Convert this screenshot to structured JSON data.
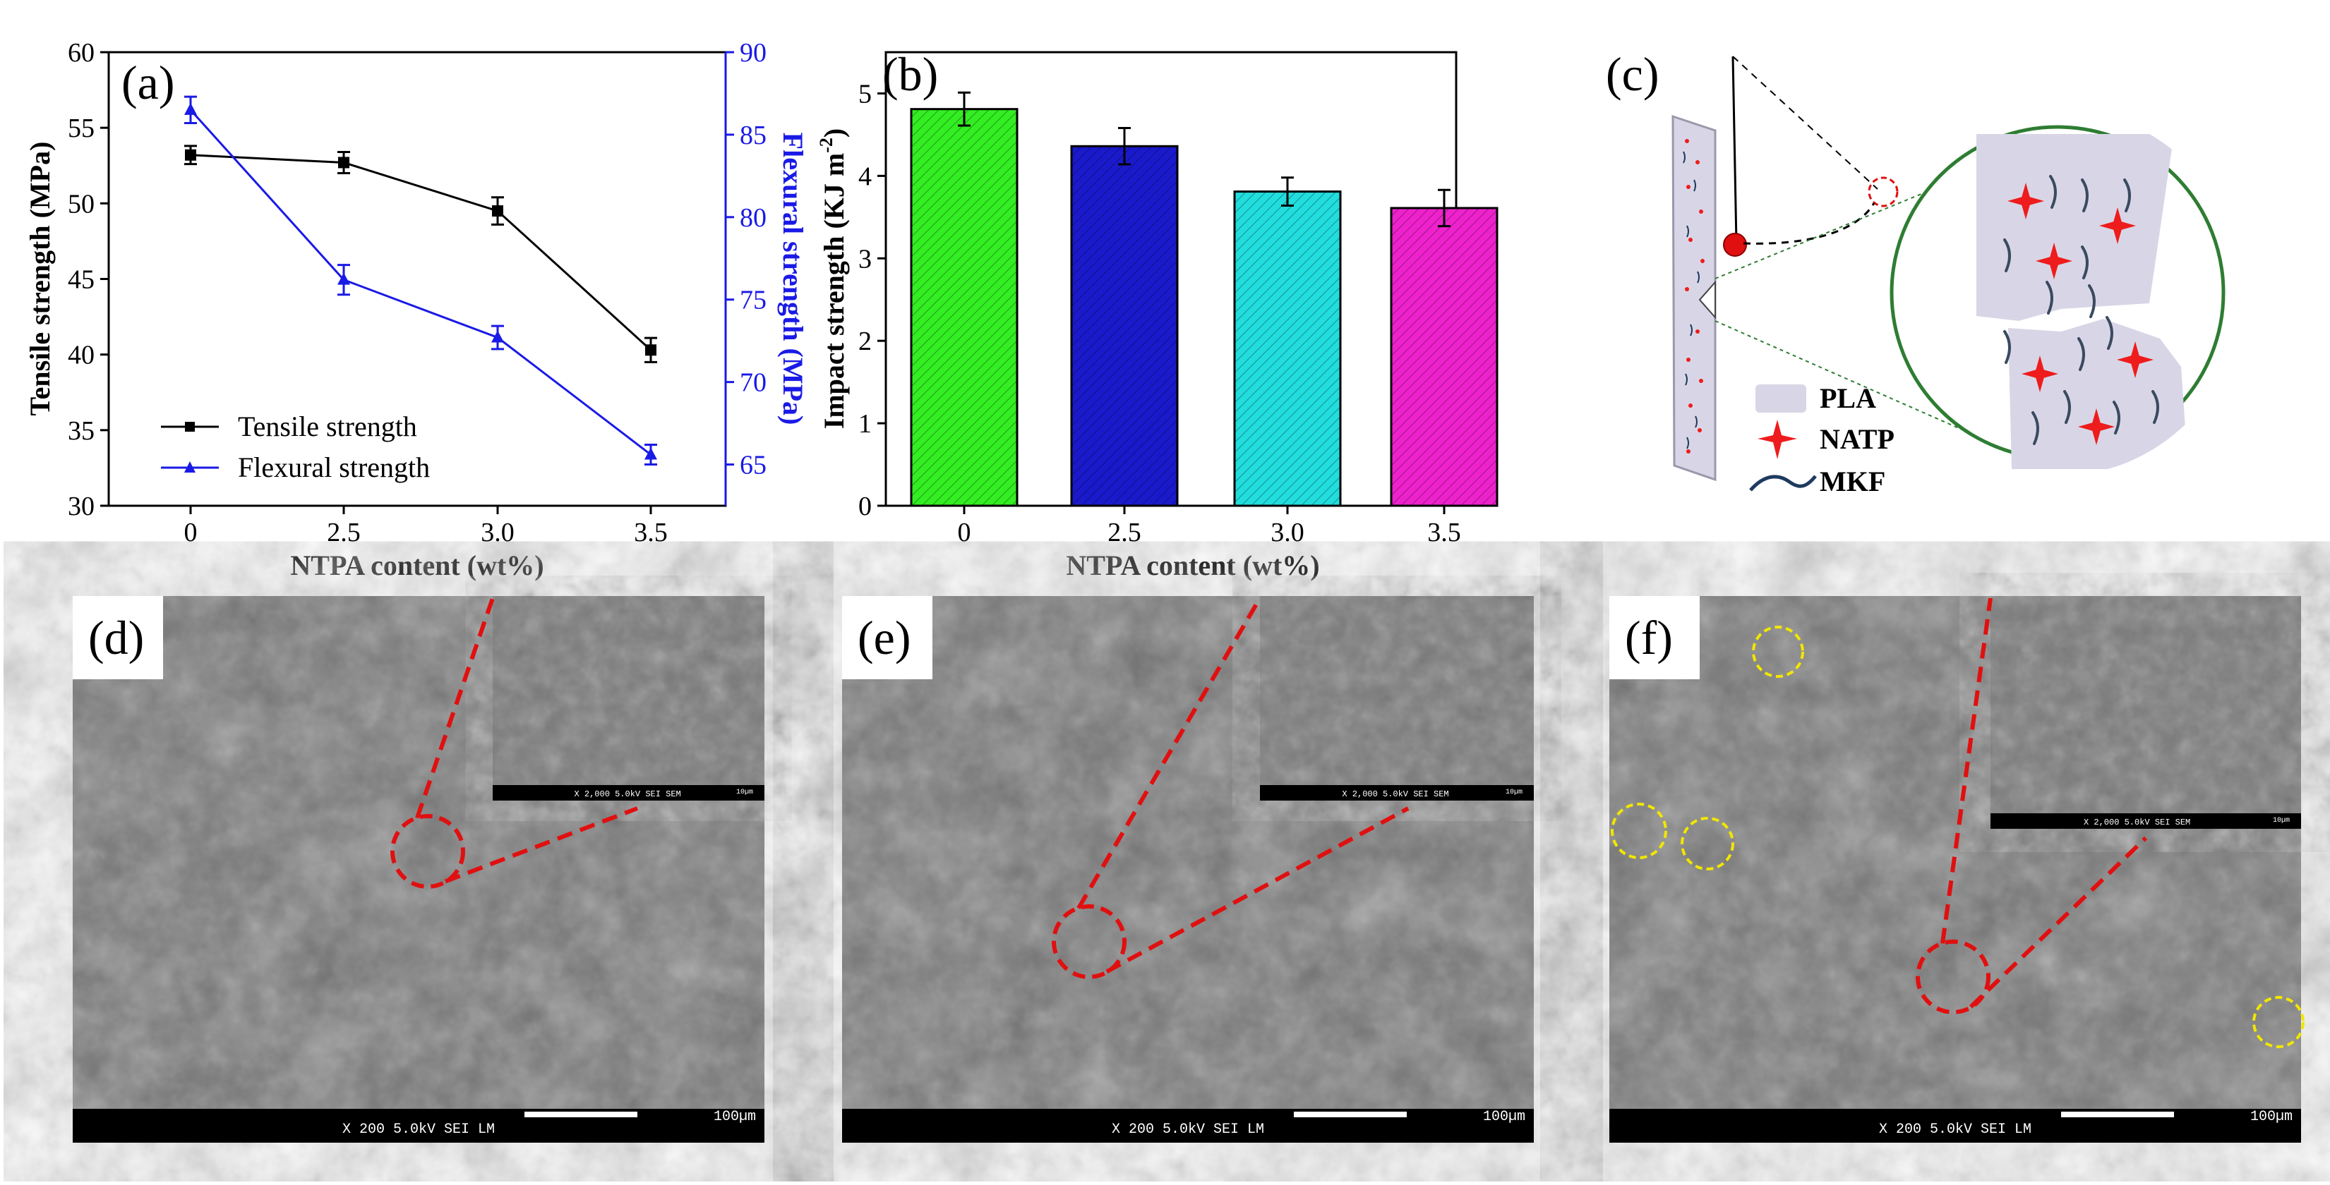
{
  "panel_labels": {
    "a": "(a)",
    "b": "(b)",
    "c": "(c)",
    "d": "(d)",
    "e": "(e)",
    "f": "(f)"
  },
  "chart_data": [
    {
      "id": "a",
      "type": "line",
      "categories": [
        "0",
        "2.5",
        "3.0",
        "3.5"
      ],
      "xlabel": "NTPA content (wt%)",
      "ylabel": "Tensile strength (MPa)",
      "y2label": "Flexural strength (MPa)",
      "ylim": [
        30,
        60
      ],
      "yticks": [
        "30",
        "35",
        "40",
        "45",
        "50",
        "55",
        "60"
      ],
      "y2lim": [
        62.5,
        90
      ],
      "y2ticks": [
        "65",
        "70",
        "75",
        "80",
        "85",
        "90"
      ],
      "legend_position": "bottom-left",
      "series": [
        {
          "name": "Tensile strength",
          "axis": "left",
          "color": "#000000",
          "marker": "square",
          "values": [
            53.2,
            52.7,
            49.5,
            40.3
          ],
          "errors": [
            0.6,
            0.7,
            0.9,
            0.8
          ]
        },
        {
          "name": "Flexural strength",
          "axis": "right",
          "color": "#1a1ae6",
          "marker": "triangle",
          "values": [
            86.5,
            76.2,
            72.7,
            65.6
          ],
          "errors": [
            0.8,
            0.9,
            0.7,
            0.6
          ]
        }
      ]
    },
    {
      "id": "b",
      "type": "bar",
      "categories": [
        "0",
        "2.5",
        "3.0",
        "3.5"
      ],
      "xlabel": "NTPA content (wt%)",
      "ylabel_main": "Impact strength (KJ m",
      "ylabel_sup": "-2",
      "ylabel_end": ")",
      "ylim": [
        0,
        5.5
      ],
      "yticks": [
        "0",
        "1",
        "2",
        "3",
        "4",
        "5"
      ],
      "values": [
        4.81,
        4.36,
        3.81,
        3.61
      ],
      "errors": [
        0.2,
        0.22,
        0.17,
        0.22
      ],
      "colors": [
        "#33ee22",
        "#1a1acc",
        "#22dddd",
        "#ee22cc"
      ]
    }
  ],
  "schematic": {
    "legend": [
      {
        "label": "PLA",
        "kind": "swatch",
        "color": "#d8d6e6"
      },
      {
        "label": "NATP",
        "kind": "star",
        "color": "#ee1c1c"
      },
      {
        "label": "MKF",
        "kind": "wave",
        "color": "#1f3a5f"
      }
    ]
  },
  "sem": [
    {
      "id": "d",
      "bar_text": "X 200    5.0kV  SEI        LM",
      "scale": "100µm",
      "inset_text": "X 2,000   5.0kV  SEI       SEM",
      "inset_scale": "10µm"
    },
    {
      "id": "e",
      "bar_text": "X 200    5.0kV  SEI        LM",
      "scale": "100µm",
      "inset_text": "X 2,000   5.0kV  SEI       SEM",
      "inset_scale": "10µm"
    },
    {
      "id": "f",
      "bar_text": "X 200    5.0kV  SEI        LM",
      "scale": "100µm",
      "inset_text": "X 2,000   5.0kV  SEI       SEM",
      "inset_scale": "10µm"
    }
  ]
}
